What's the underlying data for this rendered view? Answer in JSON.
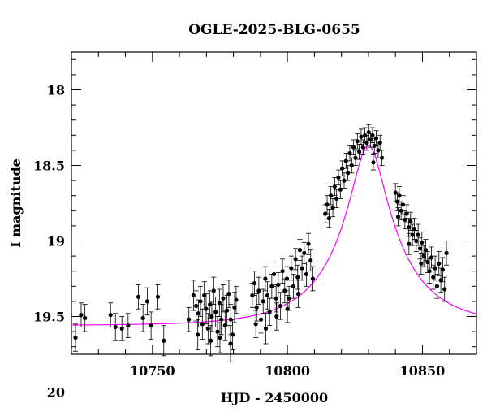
{
  "chart_data": {
    "type": "scatter",
    "title": "OGLE-2025-BLG-0655",
    "xlabel": "HJD - 2450000",
    "ylabel": "I magnitude",
    "xlim": [
      10720,
      10870
    ],
    "ylim": [
      19.75,
      17.75
    ],
    "y_inverted": true,
    "xticks": [
      10750,
      10800,
      10850
    ],
    "yticks": [
      18,
      18.5,
      19,
      19.5,
      20
    ],
    "xtick_labels": [
      "10750",
      "10800",
      "10850"
    ],
    "ytick_labels": [
      "18",
      "18.5",
      "19",
      "19.5",
      "20"
    ],
    "grid": false,
    "colors": {
      "data": "#000000",
      "model": "#ff00ff"
    },
    "model": {
      "type": "microlensing-pspl",
      "baseline_mag": 19.56,
      "t0": 10830,
      "tE": 27,
      "u0": 0.22,
      "blend_fraction": 0.55
    },
    "series": [
      {
        "type": "points-with-errorbars",
        "points": [
          [
            10721.5,
            19.64,
            0.09
          ],
          [
            10723.6,
            19.49,
            0.08
          ],
          [
            10725.0,
            19.51,
            0.09
          ],
          [
            10734.5,
            19.49,
            0.08
          ],
          [
            10736.3,
            19.57,
            0.09
          ],
          [
            10738.7,
            19.58,
            0.08
          ],
          [
            10741.0,
            19.56,
            0.08
          ],
          [
            10744.8,
            19.37,
            0.08
          ],
          [
            10746.5,
            19.51,
            0.09
          ],
          [
            10748.1,
            19.4,
            0.09
          ],
          [
            10749.5,
            19.56,
            0.09
          ],
          [
            10752.0,
            19.37,
            0.08
          ],
          [
            10754.2,
            19.66,
            0.1
          ],
          [
            10763.5,
            19.52,
            0.08
          ],
          [
            10765.2,
            19.36,
            0.1
          ],
          [
            10766.2,
            19.43,
            0.1
          ],
          [
            10767.0,
            19.48,
            0.09
          ],
          [
            10767.8,
            19.4,
            0.1
          ],
          [
            10768.5,
            19.55,
            0.1
          ],
          [
            10769.2,
            19.36,
            0.09
          ],
          [
            10769.9,
            19.45,
            0.1
          ],
          [
            10770.6,
            19.58,
            0.1
          ],
          [
            10771.3,
            19.42,
            0.09
          ],
          [
            10772.0,
            19.5,
            0.1
          ],
          [
            10772.7,
            19.33,
            0.09
          ],
          [
            10773.4,
            19.47,
            0.1
          ],
          [
            10774.1,
            19.6,
            0.1
          ],
          [
            10774.8,
            19.41,
            0.09
          ],
          [
            10775.5,
            19.52,
            0.1
          ],
          [
            10776.2,
            19.38,
            0.09
          ],
          [
            10776.9,
            19.56,
            0.1
          ],
          [
            10777.6,
            19.46,
            0.1
          ],
          [
            10778.3,
            19.35,
            0.09
          ],
          [
            10779.0,
            19.52,
            0.1
          ],
          [
            10779.7,
            19.62,
            0.1
          ],
          [
            10780.4,
            19.44,
            0.1
          ],
          [
            10781.0,
            19.39,
            0.09
          ],
          [
            10766.8,
            19.62,
            0.1
          ],
          [
            10771.6,
            19.66,
            0.1
          ],
          [
            10775.0,
            19.64,
            0.1
          ],
          [
            10778.9,
            19.68,
            0.12
          ],
          [
            10787.0,
            19.36,
            0.08
          ],
          [
            10787.8,
            19.28,
            0.08
          ],
          [
            10788.6,
            19.44,
            0.09
          ],
          [
            10789.4,
            19.33,
            0.09
          ],
          [
            10790.2,
            19.52,
            0.09
          ],
          [
            10791.0,
            19.4,
            0.08
          ],
          [
            10791.8,
            19.25,
            0.08
          ],
          [
            10792.6,
            19.36,
            0.09
          ],
          [
            10793.4,
            19.47,
            0.09
          ],
          [
            10794.2,
            19.3,
            0.08
          ],
          [
            10795.0,
            19.22,
            0.08
          ],
          [
            10795.8,
            19.38,
            0.09
          ],
          [
            10796.6,
            19.29,
            0.08
          ],
          [
            10797.4,
            19.43,
            0.09
          ],
          [
            10798.2,
            19.2,
            0.08
          ],
          [
            10799.0,
            19.33,
            0.08
          ],
          [
            10799.8,
            19.25,
            0.08
          ],
          [
            10800.6,
            19.38,
            0.08
          ],
          [
            10801.4,
            19.18,
            0.08
          ],
          [
            10802.2,
            19.3,
            0.08
          ],
          [
            10803.0,
            19.12,
            0.07
          ],
          [
            10803.8,
            19.24,
            0.08
          ],
          [
            10804.6,
            19.06,
            0.07
          ],
          [
            10805.4,
            19.18,
            0.08
          ],
          [
            10806.2,
            19.08,
            0.07
          ],
          [
            10807.0,
            19.22,
            0.08
          ],
          [
            10807.8,
            19.02,
            0.07
          ],
          [
            10808.6,
            19.13,
            0.07
          ],
          [
            10809.4,
            19.25,
            0.08
          ],
          [
            10788.3,
            19.55,
            0.09
          ],
          [
            10792.0,
            19.58,
            0.1
          ],
          [
            10796.0,
            19.5,
            0.09
          ],
          [
            10800.0,
            19.45,
            0.09
          ],
          [
            10804.0,
            19.35,
            0.09
          ],
          [
            10814.0,
            18.82,
            0.06
          ],
          [
            10814.7,
            18.76,
            0.06
          ],
          [
            10815.4,
            18.85,
            0.06
          ],
          [
            10816.1,
            18.7,
            0.06
          ],
          [
            10816.8,
            18.78,
            0.06
          ],
          [
            10817.5,
            18.64,
            0.06
          ],
          [
            10818.2,
            18.72,
            0.06
          ],
          [
            10818.9,
            18.58,
            0.05
          ],
          [
            10819.6,
            18.66,
            0.06
          ],
          [
            10820.3,
            18.52,
            0.05
          ],
          [
            10821.0,
            18.6,
            0.05
          ],
          [
            10821.7,
            18.47,
            0.05
          ],
          [
            10822.4,
            18.55,
            0.05
          ],
          [
            10823.1,
            18.42,
            0.05
          ],
          [
            10823.8,
            18.5,
            0.05
          ],
          [
            10824.5,
            18.38,
            0.05
          ],
          [
            10825.2,
            18.45,
            0.05
          ],
          [
            10825.9,
            18.34,
            0.05
          ],
          [
            10826.6,
            18.41,
            0.05
          ],
          [
            10827.3,
            18.31,
            0.05
          ],
          [
            10828.0,
            18.38,
            0.05
          ],
          [
            10828.7,
            18.3,
            0.05
          ],
          [
            10829.4,
            18.35,
            0.05
          ],
          [
            10830.1,
            18.28,
            0.05
          ],
          [
            10830.8,
            18.33,
            0.05
          ],
          [
            10831.5,
            18.3,
            0.05
          ],
          [
            10832.2,
            18.37,
            0.05
          ],
          [
            10832.9,
            18.32,
            0.05
          ],
          [
            10833.6,
            18.4,
            0.05
          ],
          [
            10834.3,
            18.35,
            0.05
          ],
          [
            10835.0,
            18.45,
            0.05
          ],
          [
            10831.8,
            18.48,
            0.05
          ],
          [
            10840.0,
            18.68,
            0.06
          ],
          [
            10840.7,
            18.74,
            0.06
          ],
          [
            10841.4,
            18.7,
            0.06
          ],
          [
            10842.1,
            18.8,
            0.06
          ],
          [
            10842.8,
            18.76,
            0.06
          ],
          [
            10843.5,
            18.86,
            0.06
          ],
          [
            10844.2,
            18.82,
            0.06
          ],
          [
            10844.9,
            18.91,
            0.06
          ],
          [
            10845.6,
            18.87,
            0.06
          ],
          [
            10846.3,
            18.96,
            0.07
          ],
          [
            10847.0,
            18.92,
            0.07
          ],
          [
            10847.7,
            19.0,
            0.07
          ],
          [
            10848.4,
            18.96,
            0.07
          ],
          [
            10849.1,
            19.05,
            0.07
          ],
          [
            10849.8,
            19.01,
            0.07
          ],
          [
            10850.5,
            19.1,
            0.07
          ],
          [
            10851.2,
            19.06,
            0.07
          ],
          [
            10851.9,
            19.14,
            0.07
          ],
          [
            10852.6,
            19.2,
            0.08
          ],
          [
            10853.3,
            19.11,
            0.07
          ],
          [
            10854.0,
            19.24,
            0.08
          ],
          [
            10854.7,
            19.18,
            0.08
          ],
          [
            10855.4,
            19.3,
            0.08
          ],
          [
            10856.1,
            19.15,
            0.08
          ],
          [
            10856.8,
            19.26,
            0.08
          ],
          [
            10857.5,
            19.19,
            0.08
          ],
          [
            10858.2,
            19.32,
            0.08
          ],
          [
            10858.9,
            19.08,
            0.08
          ],
          [
            10841.0,
            18.84,
            0.06
          ],
          [
            10845.0,
            19.02,
            0.07
          ],
          [
            10849.5,
            19.15,
            0.07
          ]
        ]
      }
    ]
  }
}
